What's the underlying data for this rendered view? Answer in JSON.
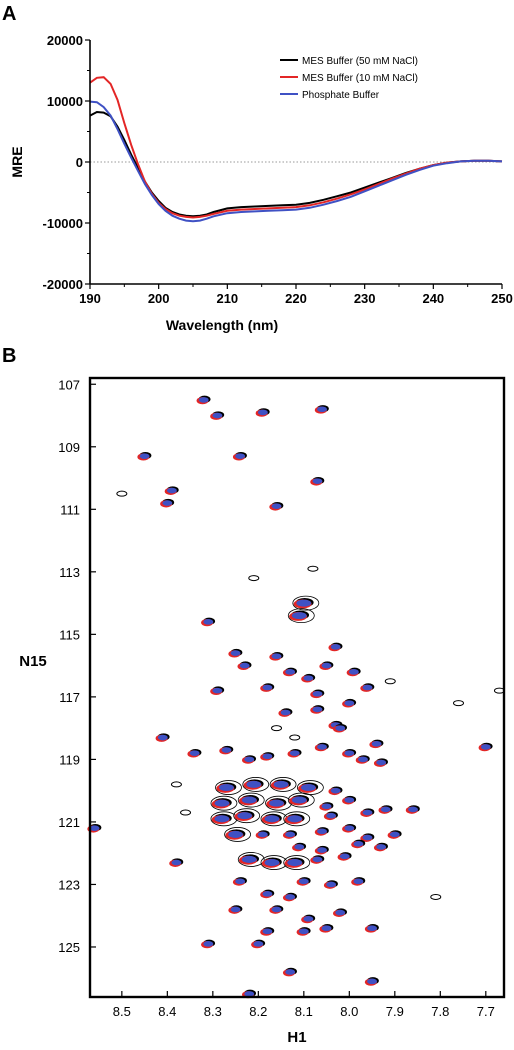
{
  "chart_data": [
    {
      "panel": "A",
      "type": "line",
      "xlabel": "Wavelength (nm)",
      "ylabel": "MRE",
      "xlim": [
        190,
        250
      ],
      "ylim": [
        -20000,
        20000
      ],
      "x_ticks": [
        190,
        200,
        210,
        220,
        230,
        240,
        250
      ],
      "y_ticks": [
        20000,
        10000,
        0,
        -10000,
        -20000
      ],
      "zero_line": "dotted",
      "legend_position": "top-right",
      "series": [
        {
          "name": "MES Buffer (50 mM NaCl)",
          "color": "#000000",
          "x": [
            190,
            191,
            192,
            193,
            194,
            195,
            196,
            197,
            198,
            199,
            200,
            201,
            202,
            203,
            204,
            205,
            206,
            207,
            208,
            210,
            212,
            214,
            216,
            218,
            220,
            222,
            224,
            226,
            228,
            230,
            232,
            234,
            236,
            238,
            240,
            242,
            244,
            246,
            248,
            250
          ],
          "y": [
            7600,
            8200,
            8100,
            7500,
            5800,
            3600,
            1200,
            -1000,
            -3200,
            -5000,
            -6400,
            -7500,
            -8200,
            -8600,
            -8800,
            -8900,
            -8800,
            -8600,
            -8200,
            -7600,
            -7400,
            -7300,
            -7200,
            -7100,
            -7000,
            -6700,
            -6200,
            -5600,
            -5000,
            -4200,
            -3400,
            -2600,
            -1800,
            -1100,
            -500,
            -100,
            100,
            200,
            200,
            100
          ]
        },
        {
          "name": "MES Buffer (10 mM NaCl)",
          "color": "#e32626",
          "x": [
            190,
            191,
            192,
            193,
            194,
            195,
            196,
            197,
            198,
            199,
            200,
            201,
            202,
            203,
            204,
            205,
            206,
            207,
            208,
            210,
            212,
            214,
            216,
            218,
            220,
            222,
            224,
            226,
            228,
            230,
            232,
            234,
            236,
            238,
            240,
            242,
            244,
            246,
            248,
            250
          ],
          "y": [
            13000,
            13800,
            13900,
            12800,
            10200,
            6400,
            2800,
            -400,
            -3200,
            -5200,
            -6700,
            -7700,
            -8400,
            -8800,
            -9000,
            -9100,
            -9000,
            -8800,
            -8500,
            -8000,
            -7800,
            -7700,
            -7600,
            -7500,
            -7400,
            -7100,
            -6600,
            -6000,
            -5300,
            -4500,
            -3600,
            -2700,
            -1900,
            -1100,
            -500,
            -100,
            100,
            200,
            200,
            100
          ]
        },
        {
          "name": "Phosphate Buffer",
          "color": "#3f51c4",
          "x": [
            190,
            191,
            192,
            193,
            194,
            195,
            196,
            197,
            198,
            199,
            200,
            201,
            202,
            203,
            204,
            205,
            206,
            207,
            208,
            210,
            212,
            214,
            216,
            218,
            220,
            222,
            224,
            226,
            228,
            230,
            232,
            234,
            236,
            238,
            240,
            242,
            244,
            246,
            248,
            250
          ],
          "y": [
            9900,
            9800,
            9000,
            7600,
            5400,
            3000,
            700,
            -1500,
            -3600,
            -5400,
            -6900,
            -8000,
            -8800,
            -9300,
            -9600,
            -9700,
            -9600,
            -9300,
            -8900,
            -8400,
            -8200,
            -8100,
            -8000,
            -7900,
            -7800,
            -7500,
            -7000,
            -6400,
            -5700,
            -4800,
            -3900,
            -3000,
            -2100,
            -1300,
            -600,
            -200,
            100,
            200,
            200,
            100
          ]
        }
      ]
    },
    {
      "panel": "B",
      "type": "scatter",
      "xlabel": "H1",
      "ylabel": "N15",
      "xlim": [
        8.57,
        7.66
      ],
      "ylim": [
        126.6,
        106.8
      ],
      "x_ticks": [
        "8.5",
        "8.4",
        "8.3",
        "8.2",
        "8.1",
        "8.0",
        "7.9",
        "7.8",
        "7.7"
      ],
      "y_ticks": [
        "107",
        "109",
        "111",
        "113",
        "115",
        "117",
        "119",
        "121",
        "123",
        "125"
      ],
      "series_colors": [
        "#000000",
        "#e32626",
        "#3f51c4"
      ],
      "peaks": [
        [
          8.32,
          107.5,
          1
        ],
        [
          8.29,
          108.0,
          1
        ],
        [
          8.19,
          107.9,
          1
        ],
        [
          8.06,
          107.8,
          1
        ],
        [
          8.45,
          109.3,
          1
        ],
        [
          8.24,
          109.3,
          1
        ],
        [
          8.07,
          110.1,
          1
        ],
        [
          8.39,
          110.4,
          1
        ],
        [
          8.4,
          110.8,
          1
        ],
        [
          8.16,
          110.9,
          1
        ],
        [
          8.21,
          113.2,
          0
        ],
        [
          8.1,
          114.0,
          2
        ],
        [
          8.11,
          114.4,
          2
        ],
        [
          8.31,
          114.6,
          1
        ],
        [
          8.25,
          115.6,
          1
        ],
        [
          8.16,
          115.7,
          1
        ],
        [
          8.03,
          115.4,
          1
        ],
        [
          8.23,
          116.0,
          1
        ],
        [
          8.13,
          116.2,
          1
        ],
        [
          8.05,
          116.0,
          1
        ],
        [
          8.09,
          116.4,
          1
        ],
        [
          7.99,
          116.2,
          1
        ],
        [
          7.96,
          116.7,
          1
        ],
        [
          7.91,
          116.5,
          0
        ],
        [
          8.29,
          116.8,
          1
        ],
        [
          8.18,
          116.7,
          1
        ],
        [
          8.07,
          116.9,
          1
        ],
        [
          8.0,
          117.2,
          1
        ],
        [
          8.14,
          117.5,
          1
        ],
        [
          8.07,
          117.4,
          1
        ],
        [
          8.03,
          117.9,
          1
        ],
        [
          8.16,
          118.0,
          0
        ],
        [
          8.12,
          118.3,
          0
        ],
        [
          8.02,
          118.0,
          1
        ],
        [
          8.41,
          118.3,
          1
        ],
        [
          8.34,
          118.8,
          1
        ],
        [
          8.27,
          118.7,
          1
        ],
        [
          8.22,
          119.0,
          1
        ],
        [
          8.18,
          118.9,
          1
        ],
        [
          8.12,
          118.8,
          1
        ],
        [
          8.06,
          118.6,
          1
        ],
        [
          8.0,
          118.8,
          1
        ],
        [
          7.97,
          119.0,
          1
        ],
        [
          7.93,
          119.1,
          1
        ],
        [
          7.94,
          118.5,
          1
        ],
        [
          8.27,
          119.9,
          2
        ],
        [
          8.21,
          119.8,
          2
        ],
        [
          8.15,
          119.8,
          2
        ],
        [
          8.09,
          119.9,
          2
        ],
        [
          8.03,
          120.0,
          1
        ],
        [
          8.28,
          120.4,
          2
        ],
        [
          8.22,
          120.3,
          2
        ],
        [
          8.16,
          120.4,
          2
        ],
        [
          8.11,
          120.3,
          2
        ],
        [
          8.05,
          120.5,
          1
        ],
        [
          8.0,
          120.3,
          1
        ],
        [
          8.28,
          120.9,
          2
        ],
        [
          8.23,
          120.8,
          2
        ],
        [
          8.17,
          120.9,
          2
        ],
        [
          8.12,
          120.9,
          2
        ],
        [
          8.04,
          120.8,
          1
        ],
        [
          7.96,
          120.7,
          1
        ],
        [
          7.92,
          120.6,
          1
        ],
        [
          7.86,
          120.6,
          1
        ],
        [
          8.25,
          121.4,
          2
        ],
        [
          8.19,
          121.4,
          1
        ],
        [
          8.13,
          121.4,
          1
        ],
        [
          8.06,
          121.3,
          1
        ],
        [
          8.0,
          121.2,
          1
        ],
        [
          7.96,
          121.5,
          1
        ],
        [
          7.9,
          121.4,
          1
        ],
        [
          8.56,
          121.2,
          1
        ],
        [
          8.11,
          121.8,
          1
        ],
        [
          8.06,
          121.9,
          1
        ],
        [
          7.98,
          121.7,
          1
        ],
        [
          7.93,
          121.8,
          1
        ],
        [
          8.22,
          122.2,
          2
        ],
        [
          8.17,
          122.3,
          2
        ],
        [
          8.12,
          122.3,
          2
        ],
        [
          8.07,
          122.2,
          1
        ],
        [
          8.01,
          122.1,
          1
        ],
        [
          8.38,
          122.3,
          1
        ],
        [
          8.24,
          122.9,
          1
        ],
        [
          8.1,
          122.9,
          1
        ],
        [
          8.04,
          123.0,
          1
        ],
        [
          7.98,
          122.9,
          1
        ],
        [
          8.18,
          123.3,
          1
        ],
        [
          8.13,
          123.4,
          1
        ],
        [
          8.25,
          123.8,
          1
        ],
        [
          8.16,
          123.8,
          1
        ],
        [
          8.09,
          124.1,
          1
        ],
        [
          8.02,
          123.9,
          1
        ],
        [
          8.05,
          124.4,
          1
        ],
        [
          7.95,
          124.4,
          1
        ],
        [
          8.18,
          124.5,
          1
        ],
        [
          8.1,
          124.5,
          1
        ],
        [
          8.2,
          124.9,
          1
        ],
        [
          8.31,
          124.9,
          1
        ],
        [
          8.13,
          125.8,
          1
        ],
        [
          8.22,
          126.5,
          1
        ],
        [
          7.95,
          126.1,
          1
        ],
        [
          7.81,
          123.4,
          0
        ],
        [
          7.76,
          117.2,
          0
        ],
        [
          7.7,
          118.6,
          1
        ],
        [
          7.67,
          116.8,
          0
        ],
        [
          8.5,
          110.5,
          0
        ],
        [
          8.36,
          120.7,
          0
        ],
        [
          8.38,
          119.8,
          0
        ],
        [
          8.08,
          112.9,
          0
        ]
      ]
    }
  ]
}
